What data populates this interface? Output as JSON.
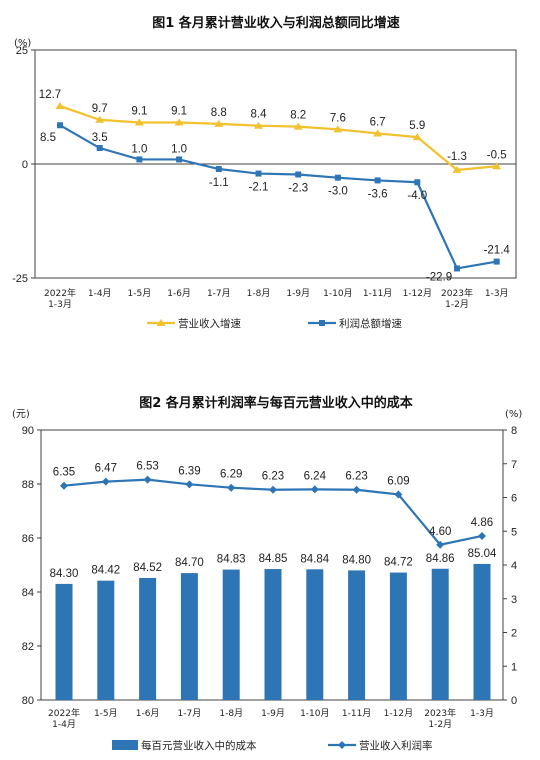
{
  "colors": {
    "yellow": "#F2C12E",
    "blue": "#2E75B6",
    "bar": "#2E75B6",
    "axis": "#404040"
  },
  "chart_data": [
    {
      "type": "line",
      "title": "图1  各月累计营业收入与利润总额同比增速",
      "yunit": "(%)",
      "ylim": [
        -25,
        25
      ],
      "yticks": [
        "25",
        "0",
        "-25"
      ],
      "categories": [
        [
          "2022年",
          "1-3月"
        ],
        [
          "1-4月"
        ],
        [
          "1-5月"
        ],
        [
          "1-6月"
        ],
        [
          "1-7月"
        ],
        [
          "1-8月"
        ],
        [
          "1-9月"
        ],
        [
          "1-10月"
        ],
        [
          "1-11月"
        ],
        [
          "1-12月"
        ],
        [
          "2023年",
          "1-2月"
        ],
        [
          "1-3月"
        ]
      ],
      "series": [
        {
          "name": "营业收入增速",
          "color": "yellow",
          "values": [
            12.7,
            9.7,
            9.1,
            9.1,
            8.8,
            8.4,
            8.2,
            7.6,
            6.7,
            5.9,
            -1.3,
            -0.5
          ],
          "labels": [
            "12.7",
            "9.7",
            "9.1",
            "9.1",
            "8.8",
            "8.4",
            "8.2",
            "7.6",
            "6.7",
            "5.9",
            "-1.3",
            "-0.5"
          ]
        },
        {
          "name": "利润总额增速",
          "color": "blue",
          "values": [
            8.5,
            3.5,
            1.0,
            1.0,
            -1.1,
            -2.1,
            -2.3,
            -3.0,
            -3.6,
            -4.0,
            -22.9,
            -21.4
          ],
          "labels": [
            "8.5",
            "3.5",
            "1.0",
            "1.0",
            "-1.1",
            "-2.1",
            "-2.3",
            "-3.0",
            "-3.6",
            "-4.0",
            "-22.9",
            "-21.4"
          ]
        }
      ],
      "grid": false,
      "legend": "bottom"
    },
    {
      "type": "bar",
      "title": "图2  各月累计利润率与每百元营业收入中的成本",
      "yunit_left": "(元)",
      "yunit_right": "(%)",
      "ylim_left": [
        80,
        90
      ],
      "ylim_right": [
        0,
        8
      ],
      "yticks_left": [
        "90",
        "88",
        "86",
        "84",
        "82",
        "80"
      ],
      "yticks_right": [
        "8",
        "7",
        "6",
        "5",
        "4",
        "3",
        "2",
        "1",
        "0"
      ],
      "categories": [
        [
          "2022年",
          "1-4月"
        ],
        [
          "1-5月"
        ],
        [
          "1-6月"
        ],
        [
          "1-7月"
        ],
        [
          "1-8月"
        ],
        [
          "1-9月"
        ],
        [
          "1-10月"
        ],
        [
          "1-11月"
        ],
        [
          "1-12月"
        ],
        [
          "2023年",
          "1-2月"
        ],
        [
          "1-3月"
        ]
      ],
      "series": [
        {
          "name": "每百元营业收入中的成本",
          "kind": "bar",
          "axis": "left",
          "color": "bar",
          "values": [
            84.3,
            84.42,
            84.52,
            84.7,
            84.83,
            84.85,
            84.84,
            84.8,
            84.72,
            84.86,
            85.04
          ],
          "labels": [
            "84.30",
            "84.42",
            "84.52",
            "84.70",
            "84.83",
            "84.85",
            "84.84",
            "84.80",
            "84.72",
            "84.86",
            "85.04"
          ]
        },
        {
          "name": "营业收入利润率",
          "kind": "line",
          "axis": "right",
          "color": "blue",
          "values": [
            6.35,
            6.47,
            6.53,
            6.39,
            6.29,
            6.23,
            6.24,
            6.23,
            6.09,
            4.6,
            4.86
          ],
          "labels": [
            "6.35",
            "6.47",
            "6.53",
            "6.39",
            "6.29",
            "6.23",
            "6.24",
            "6.23",
            "6.09",
            "4.60",
            "4.86"
          ]
        }
      ],
      "grid": false,
      "legend": "bottom"
    }
  ]
}
